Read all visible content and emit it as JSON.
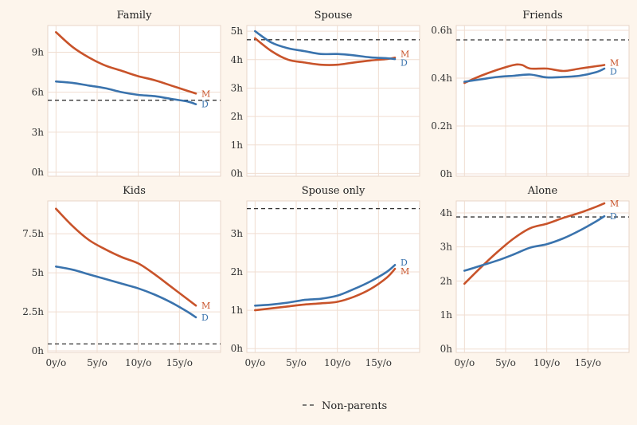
{
  "colors": {
    "mothers": "#c8532a",
    "fathers": "#3a73ad",
    "reference": "#333333",
    "background": "#fdf5ec"
  },
  "legend": {
    "label": "Non-parents"
  },
  "chart_data": [
    {
      "type": "line",
      "title": "Family",
      "ylim": [
        -0.3,
        11
      ],
      "yticks": [
        0,
        3,
        6,
        9
      ],
      "ytick_labels": [
        "0h",
        "3h",
        "6h",
        "9h"
      ],
      "xlim": [
        -1,
        20
      ],
      "xticks": [
        0,
        5,
        10,
        15
      ],
      "xtick_labels": [
        "",
        "",
        "",
        ""
      ],
      "reference": 5.4,
      "series": [
        {
          "name": "M",
          "x": [
            0,
            2,
            4,
            6,
            8,
            10,
            12,
            14,
            16,
            17
          ],
          "values": [
            10.5,
            9.4,
            8.6,
            8.0,
            7.6,
            7.2,
            6.9,
            6.5,
            6.1,
            5.9
          ]
        },
        {
          "name": "D",
          "x": [
            0,
            2,
            4,
            6,
            8,
            10,
            12,
            14,
            16,
            17
          ],
          "values": [
            6.8,
            6.7,
            6.5,
            6.3,
            6.0,
            5.8,
            5.7,
            5.5,
            5.3,
            5.1
          ]
        }
      ]
    },
    {
      "type": "line",
      "title": "Spouse",
      "ylim": [
        -0.1,
        5.2
      ],
      "yticks": [
        0,
        1,
        2,
        3,
        4,
        5
      ],
      "ytick_labels": [
        "0h",
        "1h",
        "2h",
        "3h",
        "4h",
        "5h"
      ],
      "xlim": [
        -1,
        20
      ],
      "xticks": [
        0,
        5,
        10,
        15
      ],
      "xtick_labels": [
        "",
        "",
        "",
        ""
      ],
      "reference": 4.7,
      "series": [
        {
          "name": "M",
          "x": [
            0,
            2,
            4,
            6,
            8,
            10,
            12,
            14,
            16,
            17
          ],
          "values": [
            4.75,
            4.3,
            4.0,
            3.9,
            3.82,
            3.82,
            3.9,
            3.97,
            4.02,
            4.07
          ]
        },
        {
          "name": "D",
          "x": [
            0,
            2,
            4,
            6,
            8,
            10,
            12,
            14,
            16,
            17
          ],
          "values": [
            5.0,
            4.6,
            4.4,
            4.3,
            4.2,
            4.2,
            4.15,
            4.08,
            4.05,
            4.02
          ]
        }
      ]
    },
    {
      "type": "line",
      "title": "Friends",
      "ylim": [
        -0.01,
        0.62
      ],
      "yticks": [
        0,
        0.2,
        0.4,
        0.6
      ],
      "ytick_labels": [
        "0h",
        "0.2h",
        "0.4h",
        "0.6h"
      ],
      "xlim": [
        -1,
        20
      ],
      "xticks": [
        0,
        5,
        10,
        15
      ],
      "xtick_labels": [
        "",
        "",
        "",
        ""
      ],
      "reference": 0.56,
      "series": [
        {
          "name": "M",
          "x": [
            0,
            2,
            4,
            6,
            7,
            8,
            10,
            12,
            14,
            16,
            17
          ],
          "values": [
            0.38,
            0.41,
            0.435,
            0.455,
            0.455,
            0.44,
            0.44,
            0.43,
            0.44,
            0.45,
            0.455
          ]
        },
        {
          "name": "D",
          "x": [
            0,
            2,
            4,
            6,
            8,
            10,
            12,
            14,
            16,
            17
          ],
          "values": [
            0.385,
            0.395,
            0.405,
            0.41,
            0.415,
            0.403,
            0.405,
            0.41,
            0.425,
            0.44
          ]
        }
      ]
    },
    {
      "type": "line",
      "title": "Kids",
      "ylim": [
        -0.1,
        9.6
      ],
      "yticks": [
        0,
        2.5,
        5,
        7.5
      ],
      "ytick_labels": [
        "0h",
        "2.5h",
        "5h",
        "7.5h"
      ],
      "xlim": [
        -1,
        20
      ],
      "xticks": [
        0,
        5,
        10,
        15
      ],
      "xtick_labels": [
        "0y/o",
        "5y/o",
        "10y/o",
        "15y/o"
      ],
      "reference": 0.45,
      "series": [
        {
          "name": "M",
          "x": [
            0,
            2,
            4,
            6,
            8,
            10,
            12,
            14,
            16,
            17
          ],
          "values": [
            9.1,
            8.0,
            7.1,
            6.5,
            6.0,
            5.6,
            4.9,
            4.1,
            3.3,
            2.9
          ]
        },
        {
          "name": "D",
          "x": [
            0,
            2,
            4,
            6,
            8,
            10,
            12,
            14,
            16,
            17
          ],
          "values": [
            5.4,
            5.2,
            4.9,
            4.6,
            4.3,
            4.0,
            3.6,
            3.1,
            2.5,
            2.15
          ]
        }
      ]
    },
    {
      "type": "line",
      "title": "Spouse only",
      "ylim": [
        -0.1,
        3.85
      ],
      "yticks": [
        0,
        1,
        2,
        3
      ],
      "ytick_labels": [
        "0h",
        "1h",
        "2h",
        "3h"
      ],
      "xlim": [
        -1,
        20
      ],
      "xticks": [
        0,
        5,
        10,
        15
      ],
      "xtick_labels": [
        "0y/o",
        "5y/o",
        "10y/o",
        "15y/o"
      ],
      "reference": 3.65,
      "series": [
        {
          "name": "M",
          "x": [
            0,
            2,
            4,
            6,
            8,
            10,
            12,
            14,
            16,
            17
          ],
          "values": [
            1.0,
            1.05,
            1.1,
            1.15,
            1.18,
            1.22,
            1.35,
            1.55,
            1.85,
            2.08
          ]
        },
        {
          "name": "D",
          "x": [
            0,
            2,
            4,
            6,
            8,
            10,
            12,
            14,
            16,
            17
          ],
          "values": [
            1.12,
            1.15,
            1.2,
            1.27,
            1.3,
            1.38,
            1.55,
            1.75,
            2.0,
            2.18
          ]
        }
      ]
    },
    {
      "type": "line",
      "title": "Alone",
      "ylim": [
        -0.1,
        4.35
      ],
      "yticks": [
        0,
        1,
        2,
        3,
        4
      ],
      "ytick_labels": [
        "0h",
        "1h",
        "2h",
        "3h",
        "4h"
      ],
      "xlim": [
        -1,
        20
      ],
      "xticks": [
        0,
        5,
        10,
        15
      ],
      "xtick_labels": [
        "0y/o",
        "5y/o",
        "10y/o",
        "15y/o"
      ],
      "reference": 3.88,
      "series": [
        {
          "name": "M",
          "x": [
            0,
            2,
            4,
            6,
            8,
            10,
            12,
            14,
            16,
            17
          ],
          "values": [
            1.92,
            2.4,
            2.85,
            3.25,
            3.55,
            3.68,
            3.85,
            4.0,
            4.18,
            4.28
          ]
        },
        {
          "name": "D",
          "x": [
            0,
            2,
            4,
            6,
            8,
            10,
            12,
            14,
            16,
            17
          ],
          "values": [
            2.3,
            2.45,
            2.6,
            2.78,
            2.98,
            3.08,
            3.25,
            3.48,
            3.75,
            3.9
          ]
        }
      ]
    }
  ]
}
